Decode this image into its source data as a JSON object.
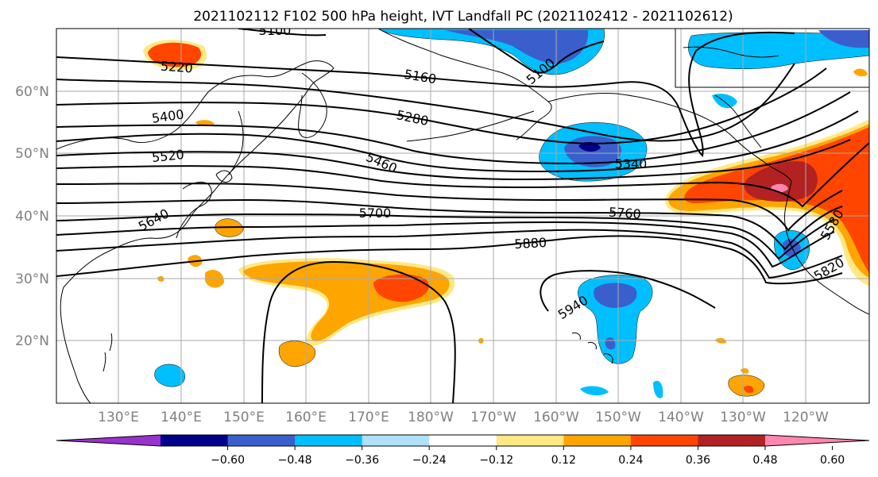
{
  "title": "2021102112 F102 500 hPa height, IVT Landfall PC (2021102412 - 2021102612)",
  "map": {
    "lat_labels": [
      "60°N",
      "50°N",
      "40°N",
      "30°N",
      "20°N"
    ],
    "lon_labels": [
      "130°E",
      "140°E",
      "150°E",
      "160°E",
      "170°E",
      "180°W",
      "170°W",
      "160°W",
      "150°W",
      "140°W",
      "130°W",
      "120°W"
    ],
    "contour_labels": [
      "5100",
      "5220",
      "5160",
      "5100",
      "5400",
      "5280",
      "5520",
      "5460",
      "5340",
      "5640",
      "5700",
      "5760",
      "5580",
      "5880",
      "5820",
      "5940"
    ]
  },
  "colorbar": {
    "ticks": [
      "−0.60",
      "−0.48",
      "−0.36",
      "−0.24",
      "−0.12",
      "0.12",
      "0.24",
      "0.36",
      "0.48",
      "0.60"
    ],
    "colors": [
      "#9932cc",
      "#00008b",
      "#3a5fcd",
      "#00bfff",
      "#b0e2ff",
      "#ffffff",
      "#ffe985",
      "#ffa500",
      "#ff4500",
      "#b22222",
      "#ff86b0"
    ]
  }
}
